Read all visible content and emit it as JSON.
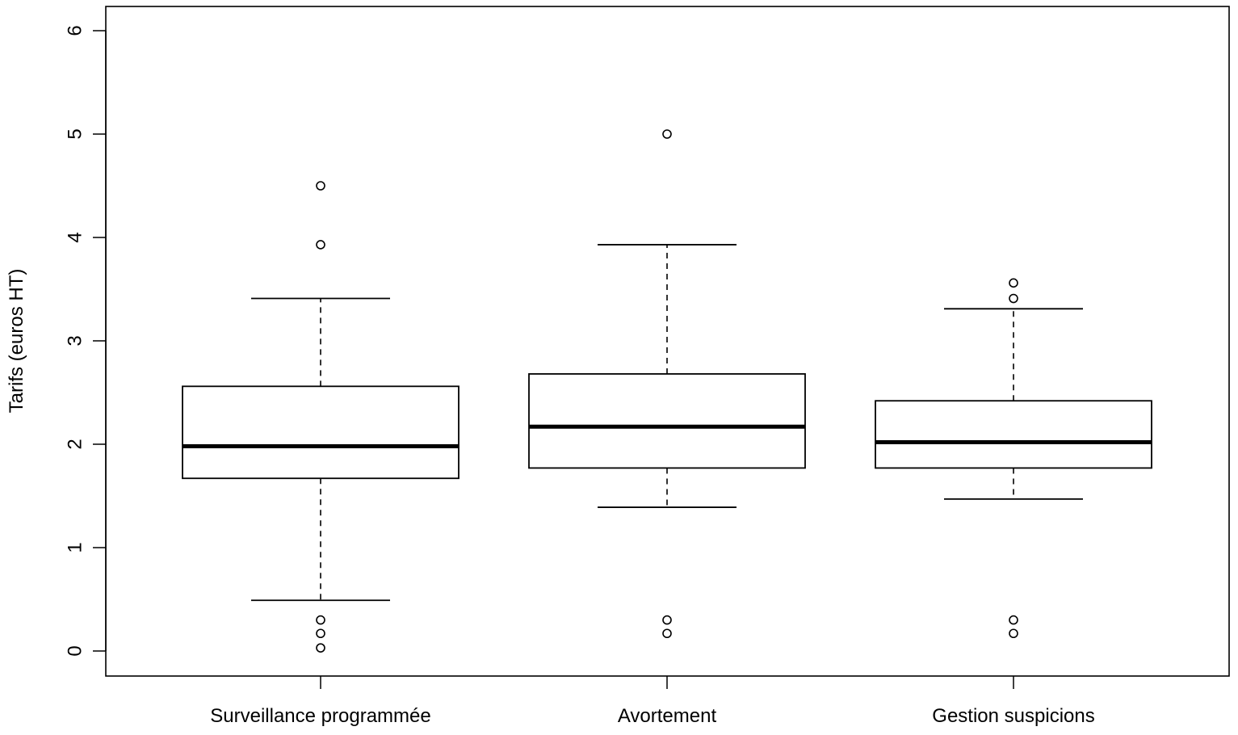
{
  "chart_data": {
    "type": "boxplot",
    "title": "",
    "xlabel": "",
    "ylabel": "Tarifs (euros HT)",
    "ylim": [
      -0.24,
      6.23
    ],
    "yticks": [
      "0",
      "1",
      "2",
      "3",
      "4",
      "5",
      "6"
    ],
    "grid": false,
    "legend": "none",
    "categories": [
      "Surveillance programmée",
      "Avortement",
      "Gestion suspicions"
    ],
    "boxes": [
      {
        "whisker_low": 0.49,
        "q1": 1.67,
        "median": 1.98,
        "q3": 2.56,
        "whisker_high": 3.41,
        "outliers": [
          0.03,
          0.17,
          0.3,
          3.93,
          4.5
        ]
      },
      {
        "whisker_low": 1.39,
        "q1": 1.77,
        "median": 2.17,
        "q3": 2.68,
        "whisker_high": 3.93,
        "outliers": [
          0.17,
          0.3,
          5.0
        ]
      },
      {
        "whisker_low": 1.47,
        "q1": 1.77,
        "median": 2.02,
        "q3": 2.42,
        "whisker_high": 3.31,
        "outliers": [
          0.17,
          0.3,
          3.41,
          3.56
        ]
      }
    ]
  }
}
